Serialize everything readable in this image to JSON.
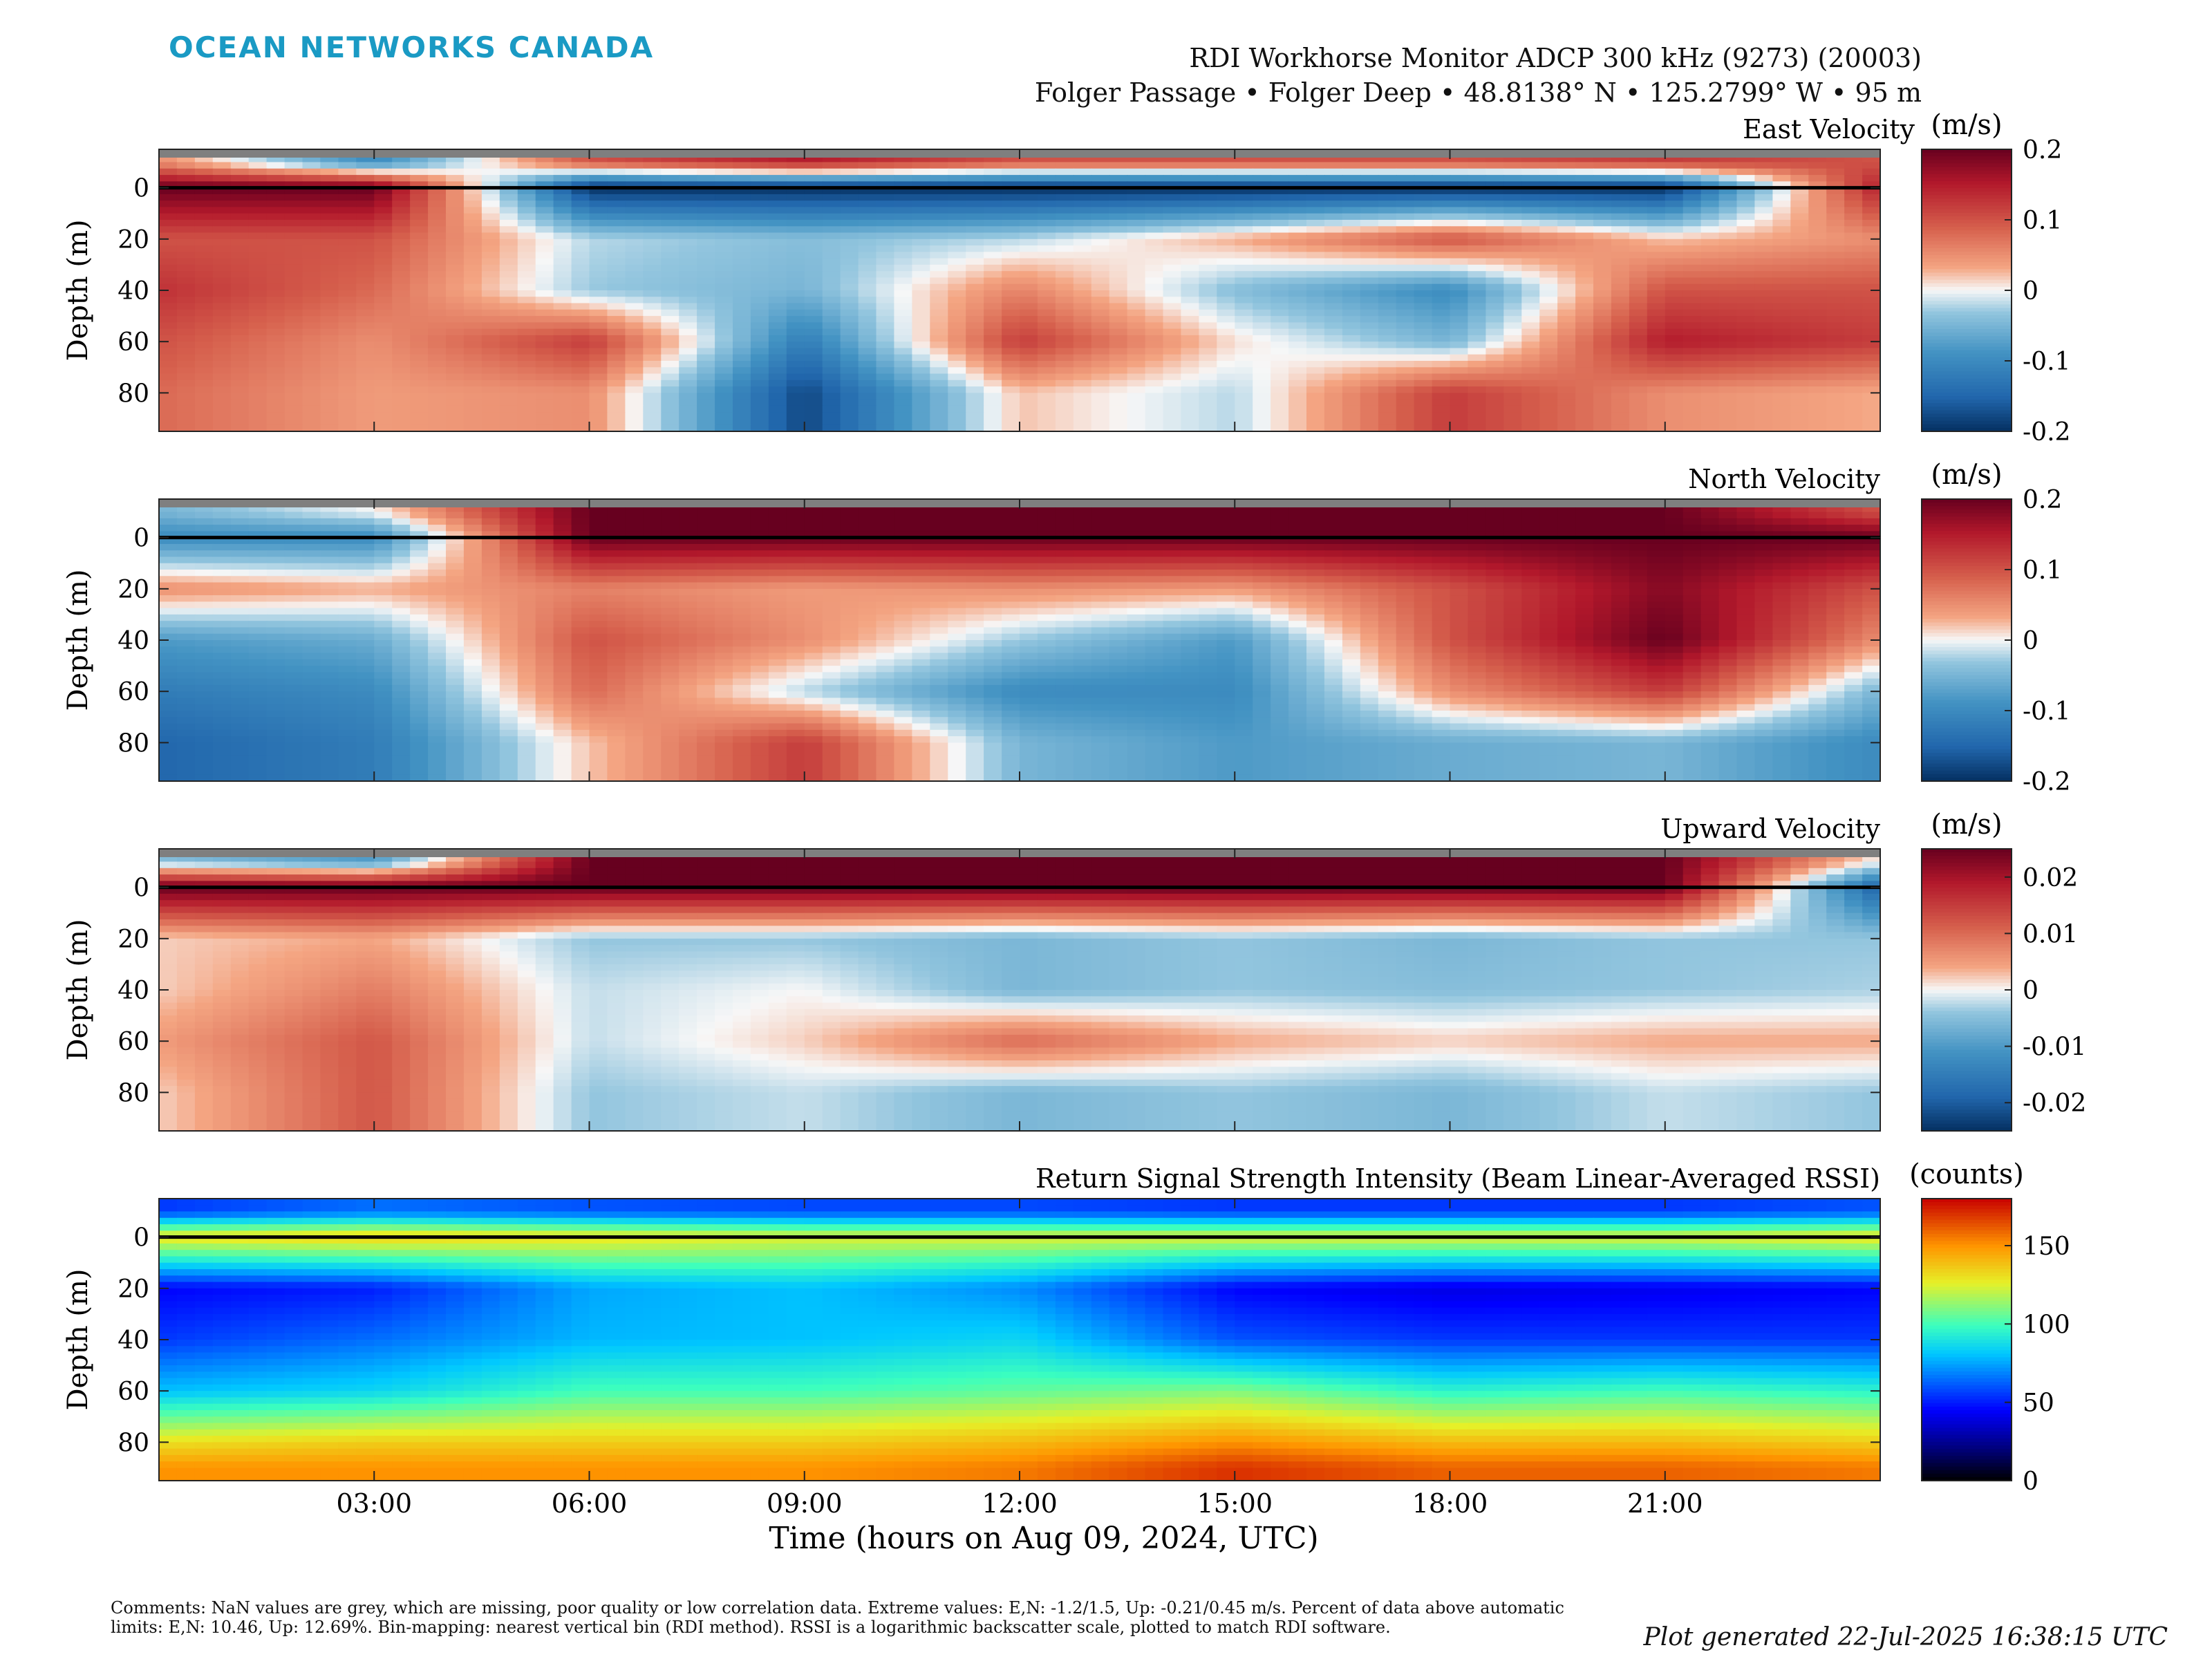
{
  "logo_text": "OCEAN NETWORKS CANADA",
  "header": {
    "title": "RDI Workhorse Monitor ADCP 300 kHz (9273) (20003)",
    "subtitle": "Folger Passage • Folger Deep • 48.8138° N • 125.2799° W • 95 m"
  },
  "chart_data": [
    {
      "type": "heatmap",
      "title": "East Velocity",
      "ylabel": "Depth (m)",
      "yticks": [
        0,
        20,
        40,
        60,
        80
      ],
      "ylim": [
        95,
        -15
      ],
      "colorbar": {
        "label": "(m/s)",
        "ticks": [
          "0.2",
          "0.1",
          "0",
          "-0.1",
          "-0.2"
        ],
        "range": [
          -0.2,
          0.2
        ],
        "colormap": "red-white-blue"
      },
      "values": {
        "depth": [
          -10,
          0,
          20,
          40,
          60,
          80
        ],
        "time": [
          "00:00",
          "03:00",
          "06:00",
          "09:00",
          "12:00",
          "15:00",
          "18:00",
          "21:00",
          "24:00"
        ],
        "z": [
          [
            0.05,
            -0.1,
            0.1,
            0.15,
            0.1,
            0.1,
            0.1,
            0.12,
            0.1
          ],
          [
            0.2,
            0.2,
            -0.2,
            -0.2,
            -0.2,
            -0.2,
            -0.2,
            -0.2,
            0.15
          ],
          [
            0.1,
            0.1,
            -0.02,
            -0.04,
            -0.02,
            0.03,
            0.1,
            0.02,
            0.05
          ],
          [
            0.13,
            0.08,
            -0.03,
            -0.05,
            0.06,
            -0.04,
            -0.1,
            0.1,
            0.1
          ],
          [
            0.1,
            0.05,
            0.12,
            -0.12,
            0.12,
            0.01,
            -0.05,
            0.15,
            0.12
          ],
          [
            0.08,
            0.04,
            0.05,
            -0.18,
            0.02,
            -0.02,
            0.12,
            0.05,
            0.03
          ]
        ]
      }
    },
    {
      "type": "heatmap",
      "title": "North Velocity",
      "ylabel": "Depth (m)",
      "yticks": [
        0,
        20,
        40,
        60,
        80
      ],
      "ylim": [
        95,
        -15
      ],
      "colorbar": {
        "label": "(m/s)",
        "ticks": [
          "0.2",
          "0.1",
          "0",
          "-0.1",
          "-0.2"
        ],
        "range": [
          -0.2,
          0.2
        ],
        "colormap": "red-white-blue"
      },
      "values": {
        "depth": [
          -10,
          0,
          20,
          40,
          60,
          80
        ],
        "time": [
          "00:00",
          "03:00",
          "06:00",
          "09:00",
          "12:00",
          "15:00",
          "18:00",
          "21:00",
          "24:00"
        ],
        "z": [
          [
            -0.05,
            0.0,
            0.2,
            0.2,
            0.2,
            0.2,
            0.2,
            0.2,
            0.1
          ],
          [
            -0.1,
            -0.1,
            0.2,
            0.2,
            0.2,
            0.2,
            0.2,
            0.2,
            0.2
          ],
          [
            0.05,
            0.03,
            0.06,
            0.04,
            0.05,
            0.04,
            0.1,
            0.18,
            0.1
          ],
          [
            -0.08,
            -0.06,
            0.1,
            0.05,
            -0.03,
            -0.08,
            0.1,
            0.2,
            0.05
          ],
          [
            -0.12,
            -0.1,
            0.08,
            -0.02,
            -0.1,
            -0.1,
            0.05,
            0.12,
            -0.05
          ],
          [
            -0.15,
            -0.12,
            0.02,
            0.12,
            -0.05,
            -0.08,
            -0.06,
            -0.05,
            -0.1
          ]
        ]
      }
    },
    {
      "type": "heatmap",
      "title": "Upward Velocity",
      "ylabel": "Depth (m)",
      "yticks": [
        0,
        20,
        40,
        60,
        80
      ],
      "ylim": [
        95,
        -15
      ],
      "colorbar": {
        "label": "(m/s)",
        "ticks": [
          "0.02",
          "0.01",
          "0",
          "-0.01",
          "-0.02"
        ],
        "range": [
          -0.025,
          0.025
        ],
        "colormap": "red-white-blue"
      },
      "values": {
        "depth": [
          -10,
          0,
          20,
          40,
          60,
          80
        ],
        "time": [
          "00:00",
          "03:00",
          "06:00",
          "09:00",
          "12:00",
          "15:00",
          "18:00",
          "21:00",
          "24:00"
        ],
        "z": [
          [
            -0.005,
            -0.01,
            0.025,
            0.025,
            0.025,
            0.025,
            0.025,
            0.025,
            0.0
          ],
          [
            0.025,
            0.025,
            0.025,
            0.025,
            0.025,
            0.025,
            0.025,
            0.025,
            -0.02
          ],
          [
            0.002,
            0.004,
            -0.004,
            -0.004,
            -0.006,
            -0.004,
            -0.006,
            -0.004,
            -0.004
          ],
          [
            0.002,
            0.008,
            -0.002,
            0.0,
            -0.006,
            -0.004,
            -0.005,
            -0.004,
            -0.003
          ],
          [
            0.005,
            0.012,
            -0.002,
            0.002,
            0.01,
            0.004,
            0.002,
            0.004,
            0.004
          ],
          [
            0.002,
            0.012,
            -0.004,
            -0.002,
            -0.006,
            -0.004,
            -0.006,
            -0.002,
            -0.004
          ]
        ]
      }
    },
    {
      "type": "heatmap",
      "title": "Return Signal Strength Intensity (Beam Linear-Averaged RSSI)",
      "ylabel": "Depth (m)",
      "yticks": [
        0,
        20,
        40,
        60,
        80
      ],
      "ylim": [
        95,
        -15
      ],
      "colorbar": {
        "label": "(counts)",
        "ticks": [
          "150",
          "100",
          "50",
          "0"
        ],
        "range": [
          0,
          180
        ],
        "colormap": "jet"
      },
      "values": {
        "depth": [
          -10,
          0,
          20,
          40,
          60,
          80,
          90
        ],
        "time": [
          "00:00",
          "03:00",
          "06:00",
          "09:00",
          "12:00",
          "15:00",
          "18:00",
          "21:00",
          "24:00"
        ],
        "z": [
          [
            55,
            65,
            60,
            58,
            58,
            55,
            55,
            55,
            60
          ],
          [
            130,
            135,
            130,
            125,
            125,
            125,
            125,
            125,
            130
          ],
          [
            45,
            50,
            75,
            80,
            70,
            45,
            40,
            42,
            45
          ],
          [
            55,
            65,
            78,
            80,
            85,
            60,
            55,
            55,
            55
          ],
          [
            80,
            85,
            100,
            100,
            105,
            110,
            95,
            100,
            95
          ],
          [
            130,
            135,
            135,
            135,
            140,
            150,
            140,
            140,
            135
          ],
          [
            150,
            150,
            150,
            150,
            155,
            170,
            160,
            160,
            155
          ]
        ]
      }
    }
  ],
  "x_axis": {
    "tick_labels": [
      "03:00",
      "06:00",
      "09:00",
      "12:00",
      "15:00",
      "18:00",
      "21:00"
    ],
    "tick_hours": [
      3,
      6,
      9,
      12,
      15,
      18,
      21
    ],
    "range_hours": [
      0,
      24
    ],
    "label": "Time (hours on Aug 09, 2024, UTC)"
  },
  "instrument_depth_line_m": 0,
  "comments": "Comments: NaN values are grey, which are missing, poor quality or low correlation data. Extreme values: E,N: -1.2/1.5, Up: -0.21/0.45 m/s. Percent of data above automatic limits: E,N: 10.46, Up: 12.69%. Bin-mapping: nearest vertical bin (RDI method). RSSI is a logarithmic backscatter scale, plotted to match RDI software.",
  "generated": "Plot generated 22-Jul-2025 16:38:15 UTC",
  "colors": {
    "logo": "#1a9ac4",
    "nan_grey": "#7f7f7f"
  }
}
